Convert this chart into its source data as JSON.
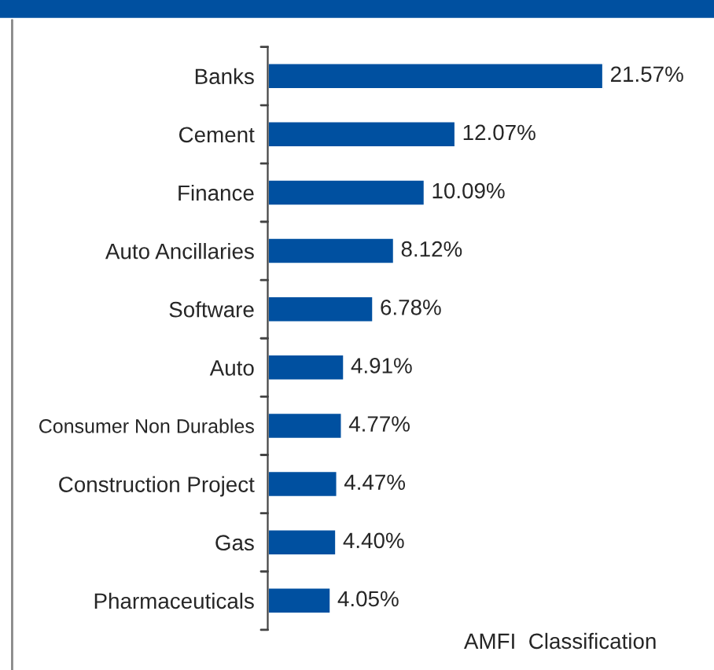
{
  "chart_data": {
    "type": "bar",
    "orientation": "horizontal",
    "categories": [
      "Banks",
      "Cement",
      "Finance",
      "Auto Ancillaries",
      "Software",
      "Auto",
      "Consumer Non Durables",
      "Construction Project",
      "Gas",
      "Pharmaceuticals"
    ],
    "values": [
      21.57,
      12.07,
      10.09,
      8.12,
      6.78,
      4.91,
      4.77,
      4.47,
      4.4,
      4.05
    ],
    "value_labels": [
      "21.57%",
      "12.07%",
      "10.09%",
      "8.12%",
      "6.78%",
      "4.91%",
      "4.77%",
      "4.47%",
      "4.40%",
      "4.05%"
    ],
    "color": "#0050a0",
    "annotations": [
      "AMFI  Classification"
    ],
    "grid": false,
    "legend": false
  }
}
